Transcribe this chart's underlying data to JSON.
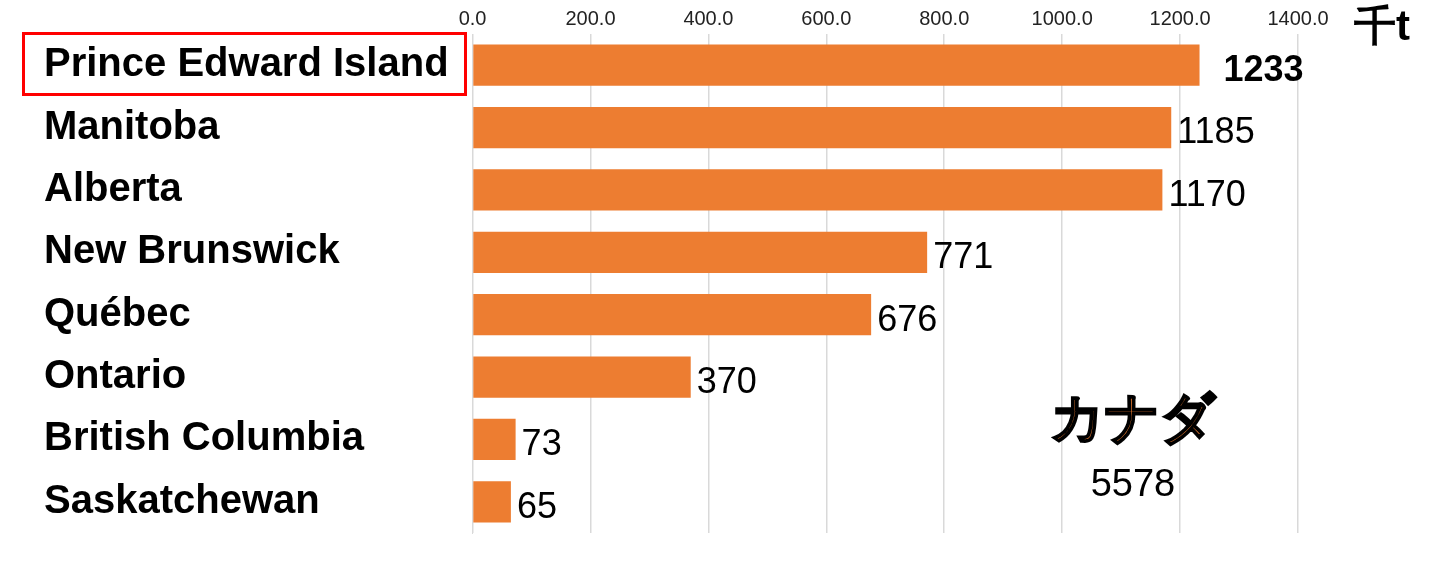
{
  "chart_data": {
    "type": "bar",
    "orientation": "horizontal",
    "xlabel": "千t",
    "categories": [
      "Prince Edward Island",
      "Manitoba",
      "Alberta",
      "New Brunswick",
      "Québec",
      "Ontario",
      "British Columbia",
      "Saskatchewan"
    ],
    "values": [
      1233,
      1185,
      1170,
      771,
      676,
      370,
      73,
      65
    ],
    "color": "#ed7d31",
    "xlim": [
      0,
      1400
    ],
    "xticks": [
      {
        "value": 0,
        "label": "0.0"
      },
      {
        "value": 200,
        "label": "200.0"
      },
      {
        "value": 400,
        "label": "400.0"
      },
      {
        "value": 600,
        "label": "600.0"
      },
      {
        "value": 800,
        "label": "800.0"
      },
      {
        "value": 1000,
        "label": "1000.0"
      },
      {
        "value": 1200,
        "label": "1200.0"
      },
      {
        "value": 1400,
        "label": "1400.0"
      }
    ],
    "grid": "x",
    "legend": false,
    "data_labels": true,
    "annotations": [
      "カナダ",
      "5578"
    ]
  }
}
